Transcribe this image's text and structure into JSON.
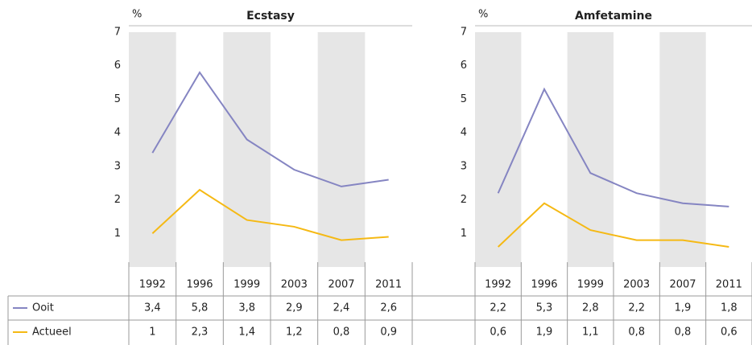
{
  "chart_data": [
    {
      "type": "line",
      "title": "Ecstasy",
      "y_label": "%",
      "categories": [
        "1992",
        "1996",
        "1999",
        "2003",
        "2007",
        "2011"
      ],
      "series": [
        {
          "name": "Ooit",
          "color": "#8585c2",
          "values": [
            3.4,
            5.8,
            3.8,
            2.9,
            2.4,
            2.6
          ],
          "value_labels": [
            "3,4",
            "5,8",
            "3,8",
            "2,9",
            "2,4",
            "2,6"
          ]
        },
        {
          "name": "Actueel",
          "color": "#f5b914",
          "values": [
            1,
            2.3,
            1.4,
            1.2,
            0.8,
            0.9
          ],
          "value_labels": [
            "1",
            "2,3",
            "1,4",
            "1,2",
            "0,8",
            "0,9"
          ]
        }
      ],
      "ylim": [
        0,
        7
      ],
      "yticks": [
        1,
        2,
        3,
        4,
        5,
        6,
        7
      ]
    },
    {
      "type": "line",
      "title": "Amfetamine",
      "y_label": "%",
      "categories": [
        "1992",
        "1996",
        "1999",
        "2003",
        "2007",
        "2011"
      ],
      "series": [
        {
          "color": "#8585c2",
          "values": [
            2.2,
            5.3,
            2.8,
            2.2,
            1.9,
            1.8
          ],
          "value_labels": [
            "2,2",
            "5,3",
            "2,8",
            "2,2",
            "1,9",
            "1,8"
          ]
        },
        {
          "color": "#f5b914",
          "values": [
            0.6,
            1.9,
            1.1,
            0.8,
            0.8,
            0.6
          ],
          "value_labels": [
            "0,6",
            "1,9",
            "1,1",
            "0,8",
            "0,8",
            "0,6"
          ]
        }
      ],
      "ylim": [
        0,
        7
      ],
      "yticks": [
        1,
        2,
        3,
        4,
        5,
        6,
        7
      ]
    }
  ]
}
